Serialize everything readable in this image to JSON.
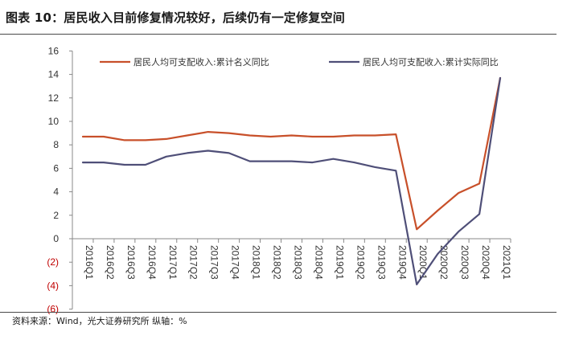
{
  "figure": {
    "title": "图表 10：居民收入目前修复情况较好，后续仍有一定修复空间",
    "source": "资料来源：Wind，光大证券研究所   纵轴：%"
  },
  "chart_data": {
    "type": "line",
    "categories": [
      "2016Q1",
      "2016Q2",
      "2016Q3",
      "2016Q4",
      "2017Q1",
      "2017Q2",
      "2017Q3",
      "2017Q4",
      "2018Q1",
      "2018Q2",
      "2018Q3",
      "2018Q4",
      "2019Q1",
      "2019Q2",
      "2019Q3",
      "2019Q4",
      "2020Q1",
      "2020Q2",
      "2020Q3",
      "2020Q4",
      "2021Q1"
    ],
    "series": [
      {
        "name": "居民人均可支配收入:累计名义同比",
        "color": "#c8502a",
        "values": [
          8.7,
          8.7,
          8.4,
          8.4,
          8.5,
          8.8,
          9.1,
          9.0,
          8.8,
          8.7,
          8.8,
          8.7,
          8.7,
          8.8,
          8.8,
          8.9,
          0.8,
          2.4,
          3.9,
          4.7,
          13.7
        ]
      },
      {
        "name": "居民人均可支配收入:累计实际同比",
        "color": "#4f4f78",
        "values": [
          6.5,
          6.5,
          6.3,
          6.3,
          7.0,
          7.3,
          7.5,
          7.3,
          6.6,
          6.6,
          6.6,
          6.5,
          6.8,
          6.5,
          6.1,
          5.8,
          -3.9,
          -1.3,
          0.6,
          2.1,
          13.7
        ]
      }
    ],
    "ylim": [
      -6,
      16
    ],
    "yticks": [
      -6,
      -4,
      -2,
      0,
      2,
      4,
      6,
      8,
      10,
      12,
      14,
      16
    ],
    "ytick_labels": [
      "(6)",
      "(4)",
      "(2)",
      "0",
      "2",
      "4",
      "6",
      "8",
      "10",
      "12",
      "14",
      "16"
    ],
    "negative_tick_color": "#c00000",
    "grid": false,
    "legend_position": "top"
  }
}
